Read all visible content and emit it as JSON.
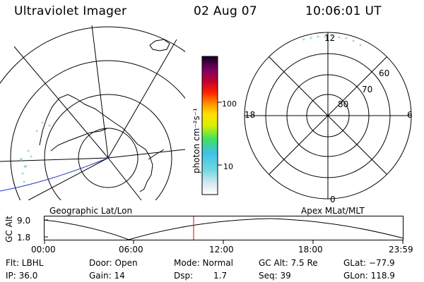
{
  "header": {
    "instrument": "Ultraviolet Imager",
    "date": "02 Aug 07",
    "time": "10:06:01 UT"
  },
  "colorbar": {
    "unit_label": "photon cm⁻²s⁻¹",
    "ticks": [
      "100",
      "10"
    ]
  },
  "right_plot": {
    "mlt_labels": [
      "12",
      "18",
      "6",
      "0"
    ],
    "mlat_labels": [
      "60",
      "70",
      "80"
    ]
  },
  "panel_titles": {
    "left": "Geographic Lat/Lon",
    "right": "Apex MLat/MLT"
  },
  "alt_plot": {
    "ylabel": "GC Alt",
    "yticks": [
      "9.0",
      "1.8"
    ],
    "xticks": [
      "00:00",
      "06:00",
      "12:00",
      "18:00",
      "23:59"
    ]
  },
  "info": {
    "row1": [
      "Flt: LBHL",
      "Door: Open",
      "Mode: Normal",
      "GC Alt: 7.5 Re",
      "GLat: −77.9"
    ],
    "row2": [
      "IP: 36.0",
      "Gain: 14",
      "Dsp:",
      "1.7",
      "Seq: 39",
      "GLon: 118.9"
    ]
  },
  "colors": {
    "line": "#000000",
    "blue_track": "#2030c0",
    "red_marker": "#e00000",
    "aurora_dots": "#a8d8d0"
  }
}
